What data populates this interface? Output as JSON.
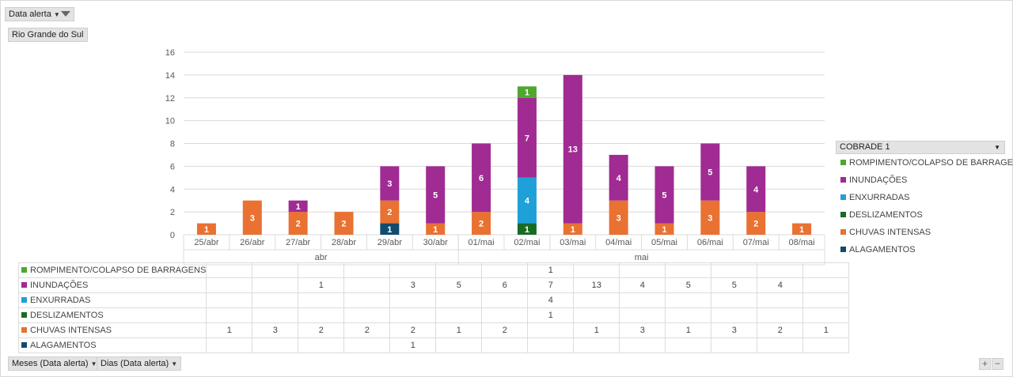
{
  "filters": {
    "top_filter_label": "Data alerta",
    "region_label": "Rio Grande do Sul",
    "bottom_filter_months": "Meses (Data alerta)",
    "bottom_filter_days": "Dias (Data alerta)"
  },
  "legend": {
    "title": "COBRADE 1"
  },
  "zoom": {
    "plus": "+",
    "minus": "−"
  },
  "colors": {
    "ROMPIMENTO/COLAPSO DE BARRAGENS": "#4ea72e",
    "INUNDAÇÕES": "#a02b93",
    "ENXURRADAS": "#1fa0d8",
    "DESLIZAMENTOS": "#196b24",
    "CHUVAS INTENSAS": "#e97132",
    "ALAGAMENTOS": "#0f4c6e"
  },
  "chart_data": {
    "type": "bar",
    "stacked": true,
    "categories": [
      "25/abr",
      "26/abr",
      "27/abr",
      "28/abr",
      "29/abr",
      "30/abr",
      "01/mai",
      "02/mai",
      "03/mai",
      "04/mai",
      "05/mai",
      "06/mai",
      "07/mai",
      "08/mai"
    ],
    "category_groups": [
      {
        "label": "abr",
        "count": 6
      },
      {
        "label": "mai",
        "count": 8
      }
    ],
    "ylim": [
      0,
      16
    ],
    "yticks": [
      0,
      2,
      4,
      6,
      8,
      10,
      12,
      14,
      16
    ],
    "legend_title": "COBRADE 1",
    "series": [
      {
        "name": "ROMPIMENTO/COLAPSO DE BARRAGENS",
        "values": [
          null,
          null,
          null,
          null,
          null,
          null,
          null,
          1,
          null,
          null,
          null,
          null,
          null,
          null
        ]
      },
      {
        "name": "INUNDAÇÕES",
        "values": [
          null,
          null,
          1,
          null,
          3,
          5,
          6,
          7,
          13,
          4,
          5,
          5,
          4,
          null
        ]
      },
      {
        "name": "ENXURRADAS",
        "values": [
          null,
          null,
          null,
          null,
          null,
          null,
          null,
          4,
          null,
          null,
          null,
          null,
          null,
          null
        ]
      },
      {
        "name": "DESLIZAMENTOS",
        "values": [
          null,
          null,
          null,
          null,
          null,
          null,
          null,
          1,
          null,
          null,
          null,
          null,
          null,
          null
        ]
      },
      {
        "name": "CHUVAS INTENSAS",
        "values": [
          1,
          3,
          2,
          2,
          2,
          1,
          2,
          null,
          1,
          3,
          1,
          3,
          2,
          1
        ]
      },
      {
        "name": "ALAGAMENTOS",
        "values": [
          null,
          null,
          null,
          null,
          1,
          null,
          null,
          null,
          null,
          null,
          null,
          null,
          null,
          null
        ]
      }
    ],
    "stack_order_bottom_to_top": [
      "ALAGAMENTOS",
      "DESLIZAMENTOS",
      "CHUVAS INTENSAS",
      "ENXURRADAS",
      "INUNDAÇÕES",
      "ROMPIMENTO/COLAPSO DE BARRAGENS"
    ]
  }
}
